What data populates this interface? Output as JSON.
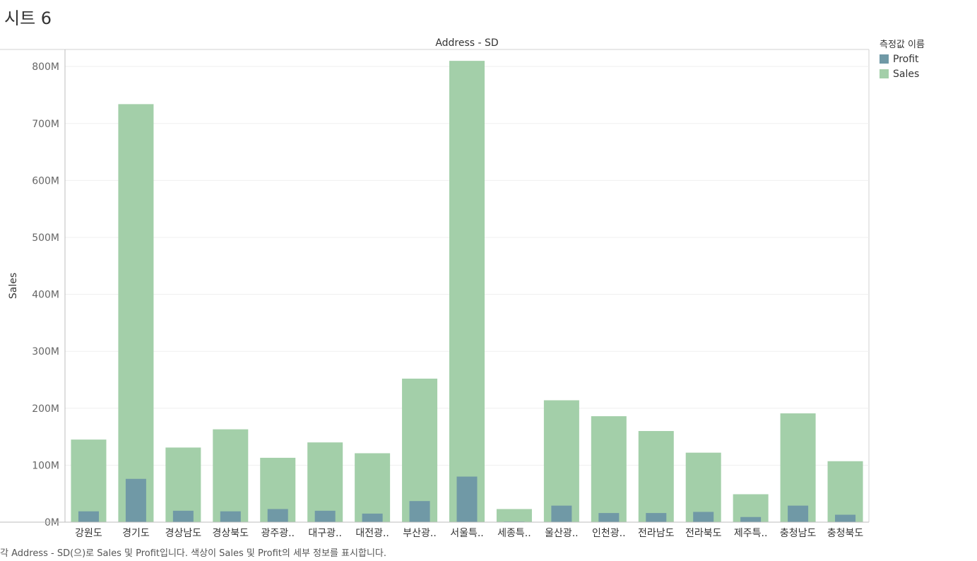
{
  "sheet": {
    "title": "시트 6"
  },
  "legend": {
    "title": "측정값 이름",
    "items": [
      {
        "label": "Profit",
        "color": "#7099a6"
      },
      {
        "label": "Sales",
        "color": "#a3cfa9"
      }
    ]
  },
  "caption": "각 Address - SD(으)로 Sales 및 Profit입니다.  색상이 Sales 및 Profit의 세부 정보를 표시합니다.",
  "chart_data": {
    "type": "bar",
    "title": "Address - SD",
    "xlabel": "",
    "ylabel": "Sales",
    "ylim": [
      0,
      830
    ],
    "yticks": [
      0,
      100,
      200,
      300,
      400,
      500,
      600,
      700,
      800
    ],
    "ytick_labels": [
      "0M",
      "100M",
      "200M",
      "300M",
      "400M",
      "500M",
      "600M",
      "700M",
      "800M"
    ],
    "grid": true,
    "categories": [
      "강원도",
      "경기도",
      "경상남도",
      "경상북도",
      "광주광..",
      "대구광..",
      "대전광..",
      "부산광..",
      "서울특..",
      "세종특..",
      "울산광..",
      "인천광..",
      "전라남도",
      "전라북도",
      "제주특..",
      "충청남도",
      "충청북도"
    ],
    "series": [
      {
        "name": "Sales",
        "color": "#a3cfa9",
        "values": [
          145,
          734,
          131,
          163,
          113,
          140,
          121,
          252,
          810,
          23,
          214,
          186,
          160,
          122,
          49,
          191,
          107
        ]
      },
      {
        "name": "Profit",
        "color": "#7099a6",
        "values": [
          19,
          76,
          20,
          19,
          23,
          20,
          15,
          37,
          80,
          1,
          29,
          16,
          16,
          18,
          9,
          29,
          13
        ]
      }
    ]
  }
}
